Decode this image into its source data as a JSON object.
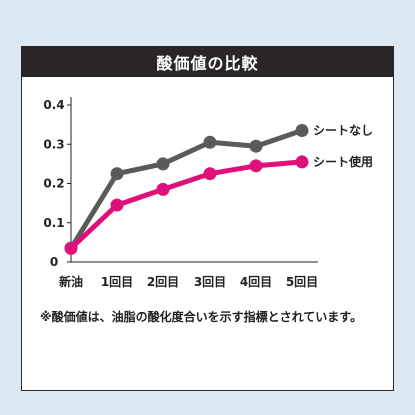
{
  "chart_data": {
    "type": "line",
    "title": "酸価値の比較",
    "categories": [
      "新油",
      "1回目",
      "2回目",
      "3回目",
      "4回目",
      "5回目"
    ],
    "y_ticks": [
      "0",
      "0.1",
      "0.2",
      "0.3",
      "0.4"
    ],
    "ylim": [
      0,
      0.4
    ],
    "grid": false,
    "legend": "inline-right",
    "series": [
      {
        "name": "シートなし",
        "values": [
          0.035,
          0.225,
          0.25,
          0.305,
          0.295,
          0.335
        ],
        "color": "#5a5a5a"
      },
      {
        "name": "シート使用",
        "values": [
          0.035,
          0.145,
          0.185,
          0.225,
          0.245,
          0.255
        ],
        "color": "#e0107a"
      }
    ],
    "note": "※酸価値は、油脂の酸化度合いを示す指標とされています。"
  }
}
